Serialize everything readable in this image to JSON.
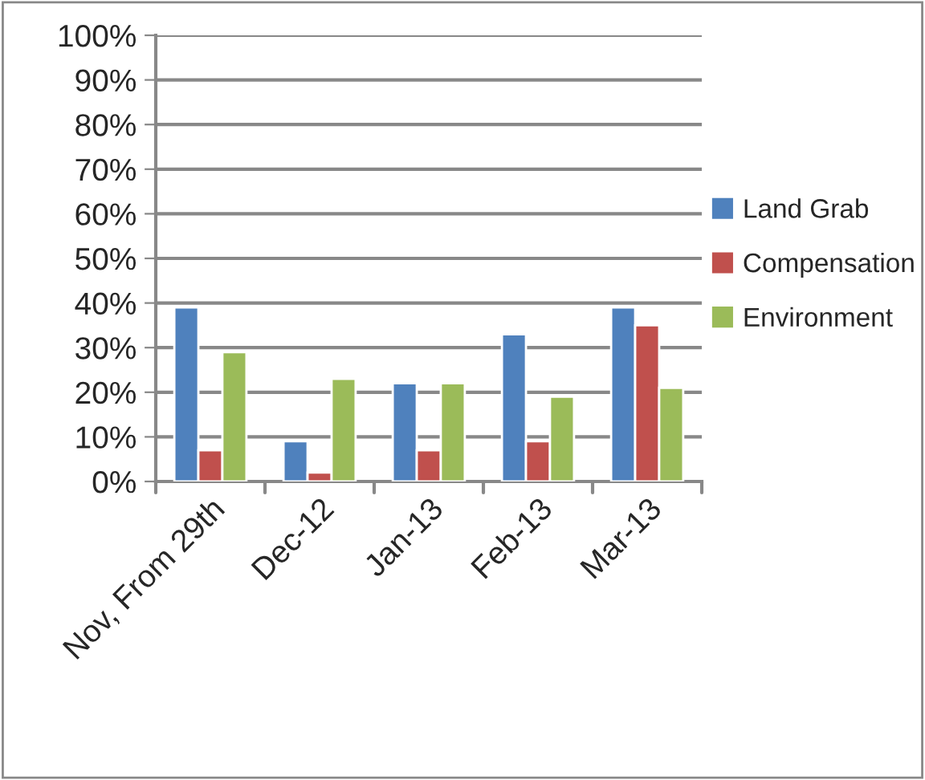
{
  "chart_data": {
    "type": "bar",
    "categories": [
      "Nov, From 29th",
      "Dec-12",
      "Jan-13",
      "Feb-13",
      "Mar-13"
    ],
    "series": [
      {
        "name": "Land Grab",
        "color": "#4f81bd",
        "values": [
          39,
          9,
          22,
          33,
          39
        ]
      },
      {
        "name": "Compensation",
        "color": "#c0504d",
        "values": [
          7,
          2,
          7,
          9,
          35
        ]
      },
      {
        "name": "Environment",
        "color": "#9bbb59",
        "values": [
          29,
          23,
          22,
          19,
          21
        ]
      }
    ],
    "ylim": [
      0,
      100
    ],
    "yticks": [
      {
        "value": 0,
        "label": "0%"
      },
      {
        "value": 10,
        "label": "10%"
      },
      {
        "value": 20,
        "label": "20%"
      },
      {
        "value": 30,
        "label": "30%"
      },
      {
        "value": 40,
        "label": "40%"
      },
      {
        "value": 50,
        "label": "50%"
      },
      {
        "value": 60,
        "label": "60%"
      },
      {
        "value": 70,
        "label": "70%"
      },
      {
        "value": 80,
        "label": "80%"
      },
      {
        "value": 90,
        "label": "90%"
      },
      {
        "value": 100,
        "label": "100%"
      }
    ],
    "grid": "y",
    "legend": "right"
  }
}
